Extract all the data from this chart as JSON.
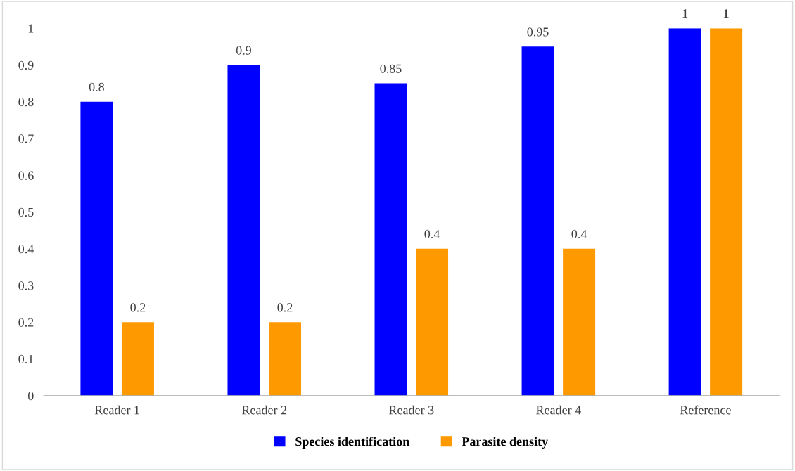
{
  "chart_data": {
    "type": "bar",
    "categories": [
      "Reader 1",
      "Reader 2",
      "Reader 3",
      "Reader 4",
      "Reference"
    ],
    "series": [
      {
        "name": "Species identification",
        "color": "#0000ff",
        "values": [
          0.8,
          0.9,
          0.85,
          0.95,
          1
        ]
      },
      {
        "name": "Parasite density",
        "color": "#ff9900",
        "values": [
          0.2,
          0.2,
          0.4,
          0.4,
          1
        ]
      }
    ],
    "ylim": [
      0,
      1
    ],
    "yticks": [
      0,
      0.1,
      0.2,
      0.3,
      0.4,
      0.5,
      0.6,
      0.7,
      0.8,
      0.9,
      1
    ],
    "data_labels": true,
    "grid": false,
    "legend": "bottom"
  }
}
